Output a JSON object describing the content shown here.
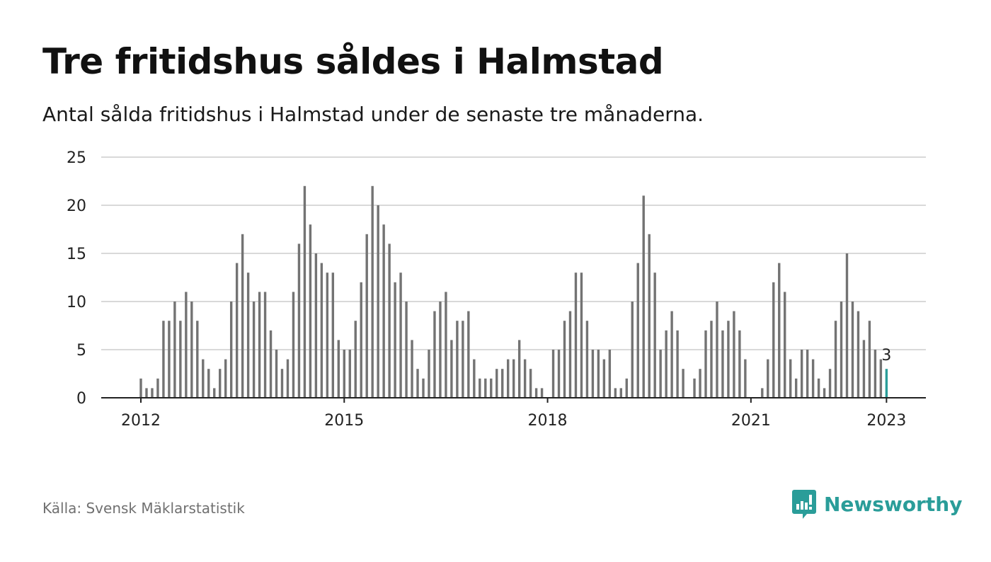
{
  "header": {
    "title": "Tre fritidshus såldes i Halmstad",
    "subtitle": "Antal sålda fritidshus i Halmstad under de senaste tre månaderna."
  },
  "footer": {
    "source": "Källa: Svensk Mäklarstatistik",
    "brand": "Newsworthy"
  },
  "colors": {
    "bar": "#737373",
    "highlight": "#2a9d99",
    "grid": "#d9d9d9",
    "axis": "#222222",
    "brand": "#2a9d99"
  },
  "chart_data": {
    "type": "bar",
    "title": "",
    "xlabel": "",
    "ylabel": "",
    "ylim": [
      0,
      25
    ],
    "yticks": [
      0,
      5,
      10,
      15,
      20,
      25
    ],
    "grid": true,
    "x_start": "2012-01",
    "x_end": "2023-01",
    "xticks": [
      "2012",
      "2015",
      "2018",
      "2021",
      "2023"
    ],
    "highlight_label": "3",
    "values": [
      2,
      1,
      1,
      2,
      8,
      8,
      10,
      8,
      11,
      10,
      8,
      4,
      3,
      1,
      3,
      4,
      10,
      14,
      17,
      13,
      10,
      11,
      11,
      7,
      5,
      3,
      4,
      11,
      16,
      22,
      18,
      15,
      14,
      13,
      13,
      6,
      5,
      5,
      8,
      12,
      17,
      22,
      20,
      18,
      16,
      12,
      13,
      10,
      6,
      3,
      2,
      5,
      9,
      10,
      11,
      6,
      8,
      8,
      9,
      4,
      2,
      2,
      2,
      3,
      3,
      4,
      4,
      6,
      4,
      3,
      1,
      1,
      0,
      5,
      5,
      8,
      9,
      13,
      13,
      8,
      5,
      5,
      4,
      5,
      1,
      1,
      2,
      10,
      14,
      21,
      17,
      13,
      5,
      7,
      9,
      7,
      3,
      0,
      2,
      3,
      7,
      8,
      10,
      7,
      8,
      9,
      7,
      4,
      0,
      0,
      1,
      4,
      12,
      14,
      11,
      4,
      2,
      5,
      5,
      4,
      2,
      1,
      3,
      8,
      10,
      15,
      10,
      9,
      6,
      8,
      5,
      4,
      3
    ]
  }
}
